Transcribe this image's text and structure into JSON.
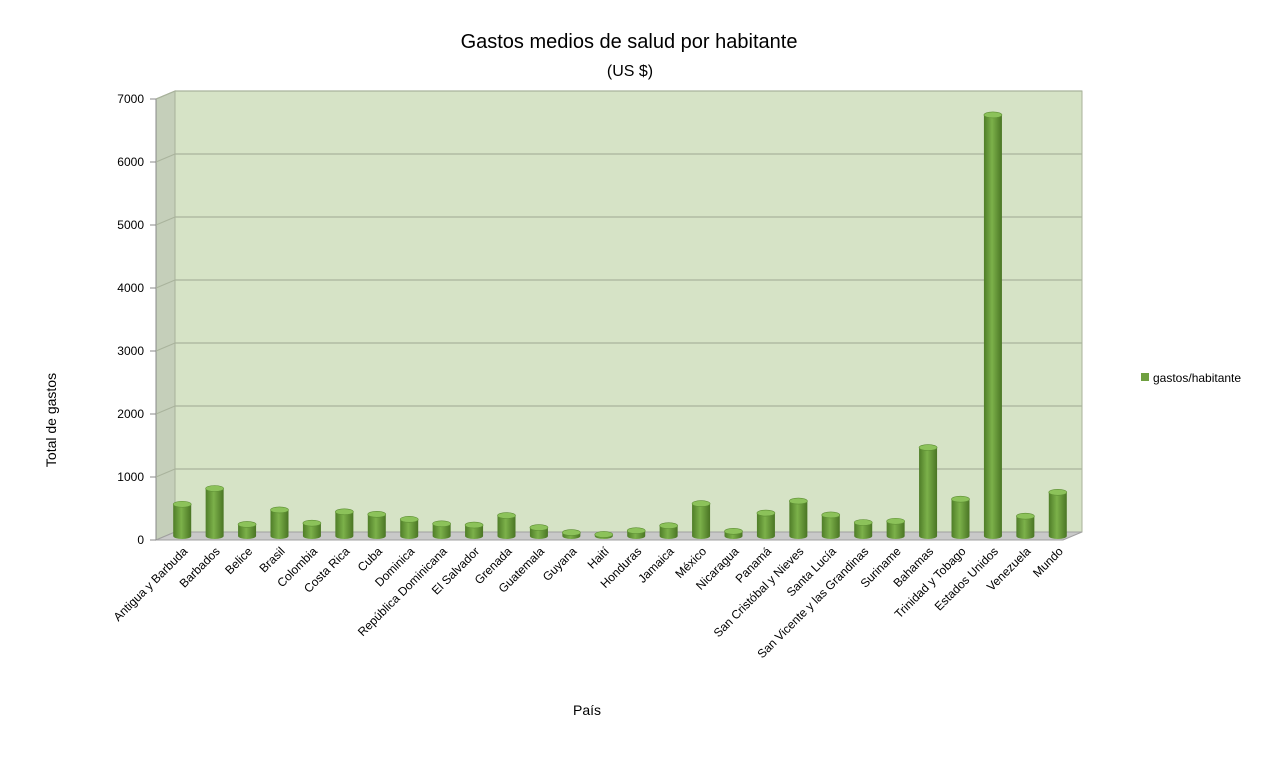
{
  "chart_data": {
    "type": "bar",
    "title": "Gastos medios de salud por habitante",
    "subtitle": "(US $)",
    "xlabel": "País",
    "ylabel": "Total de gastos",
    "ylim": [
      0,
      7000
    ],
    "yticks": [
      0,
      1000,
      2000,
      3000,
      4000,
      5000,
      6000,
      7000
    ],
    "grid": true,
    "legend_position": "right",
    "categories": [
      "Antigua y Barbuda",
      "Barbados",
      "Belice",
      "Brasil",
      "Colombia",
      "Costa Rica",
      "Cuba",
      "Dominica",
      "República Dominicana",
      "El Salvador",
      "Grenada",
      "Guatemala",
      "Guyana",
      "Haití",
      "Honduras",
      "Jamaica",
      "México",
      "Nicaragua",
      "Panamá",
      "San Cristóbal y Nieves",
      "Santa Lucía",
      "San Vicente y las Grandinas",
      "Suriname",
      "Bahamas",
      "Trinidad y Tobago",
      "Estados Unidos",
      "Venezuela",
      "Mundo"
    ],
    "series": [
      {
        "name": "gastos/habitante",
        "color": "#6fa040",
        "values": [
          520,
          770,
          200,
          430,
          220,
          400,
          360,
          280,
          210,
          190,
          340,
          150,
          70,
          40,
          100,
          180,
          530,
          90,
          380,
          570,
          350,
          230,
          250,
          1420,
          600,
          6700,
          330,
          710
        ]
      }
    ]
  }
}
